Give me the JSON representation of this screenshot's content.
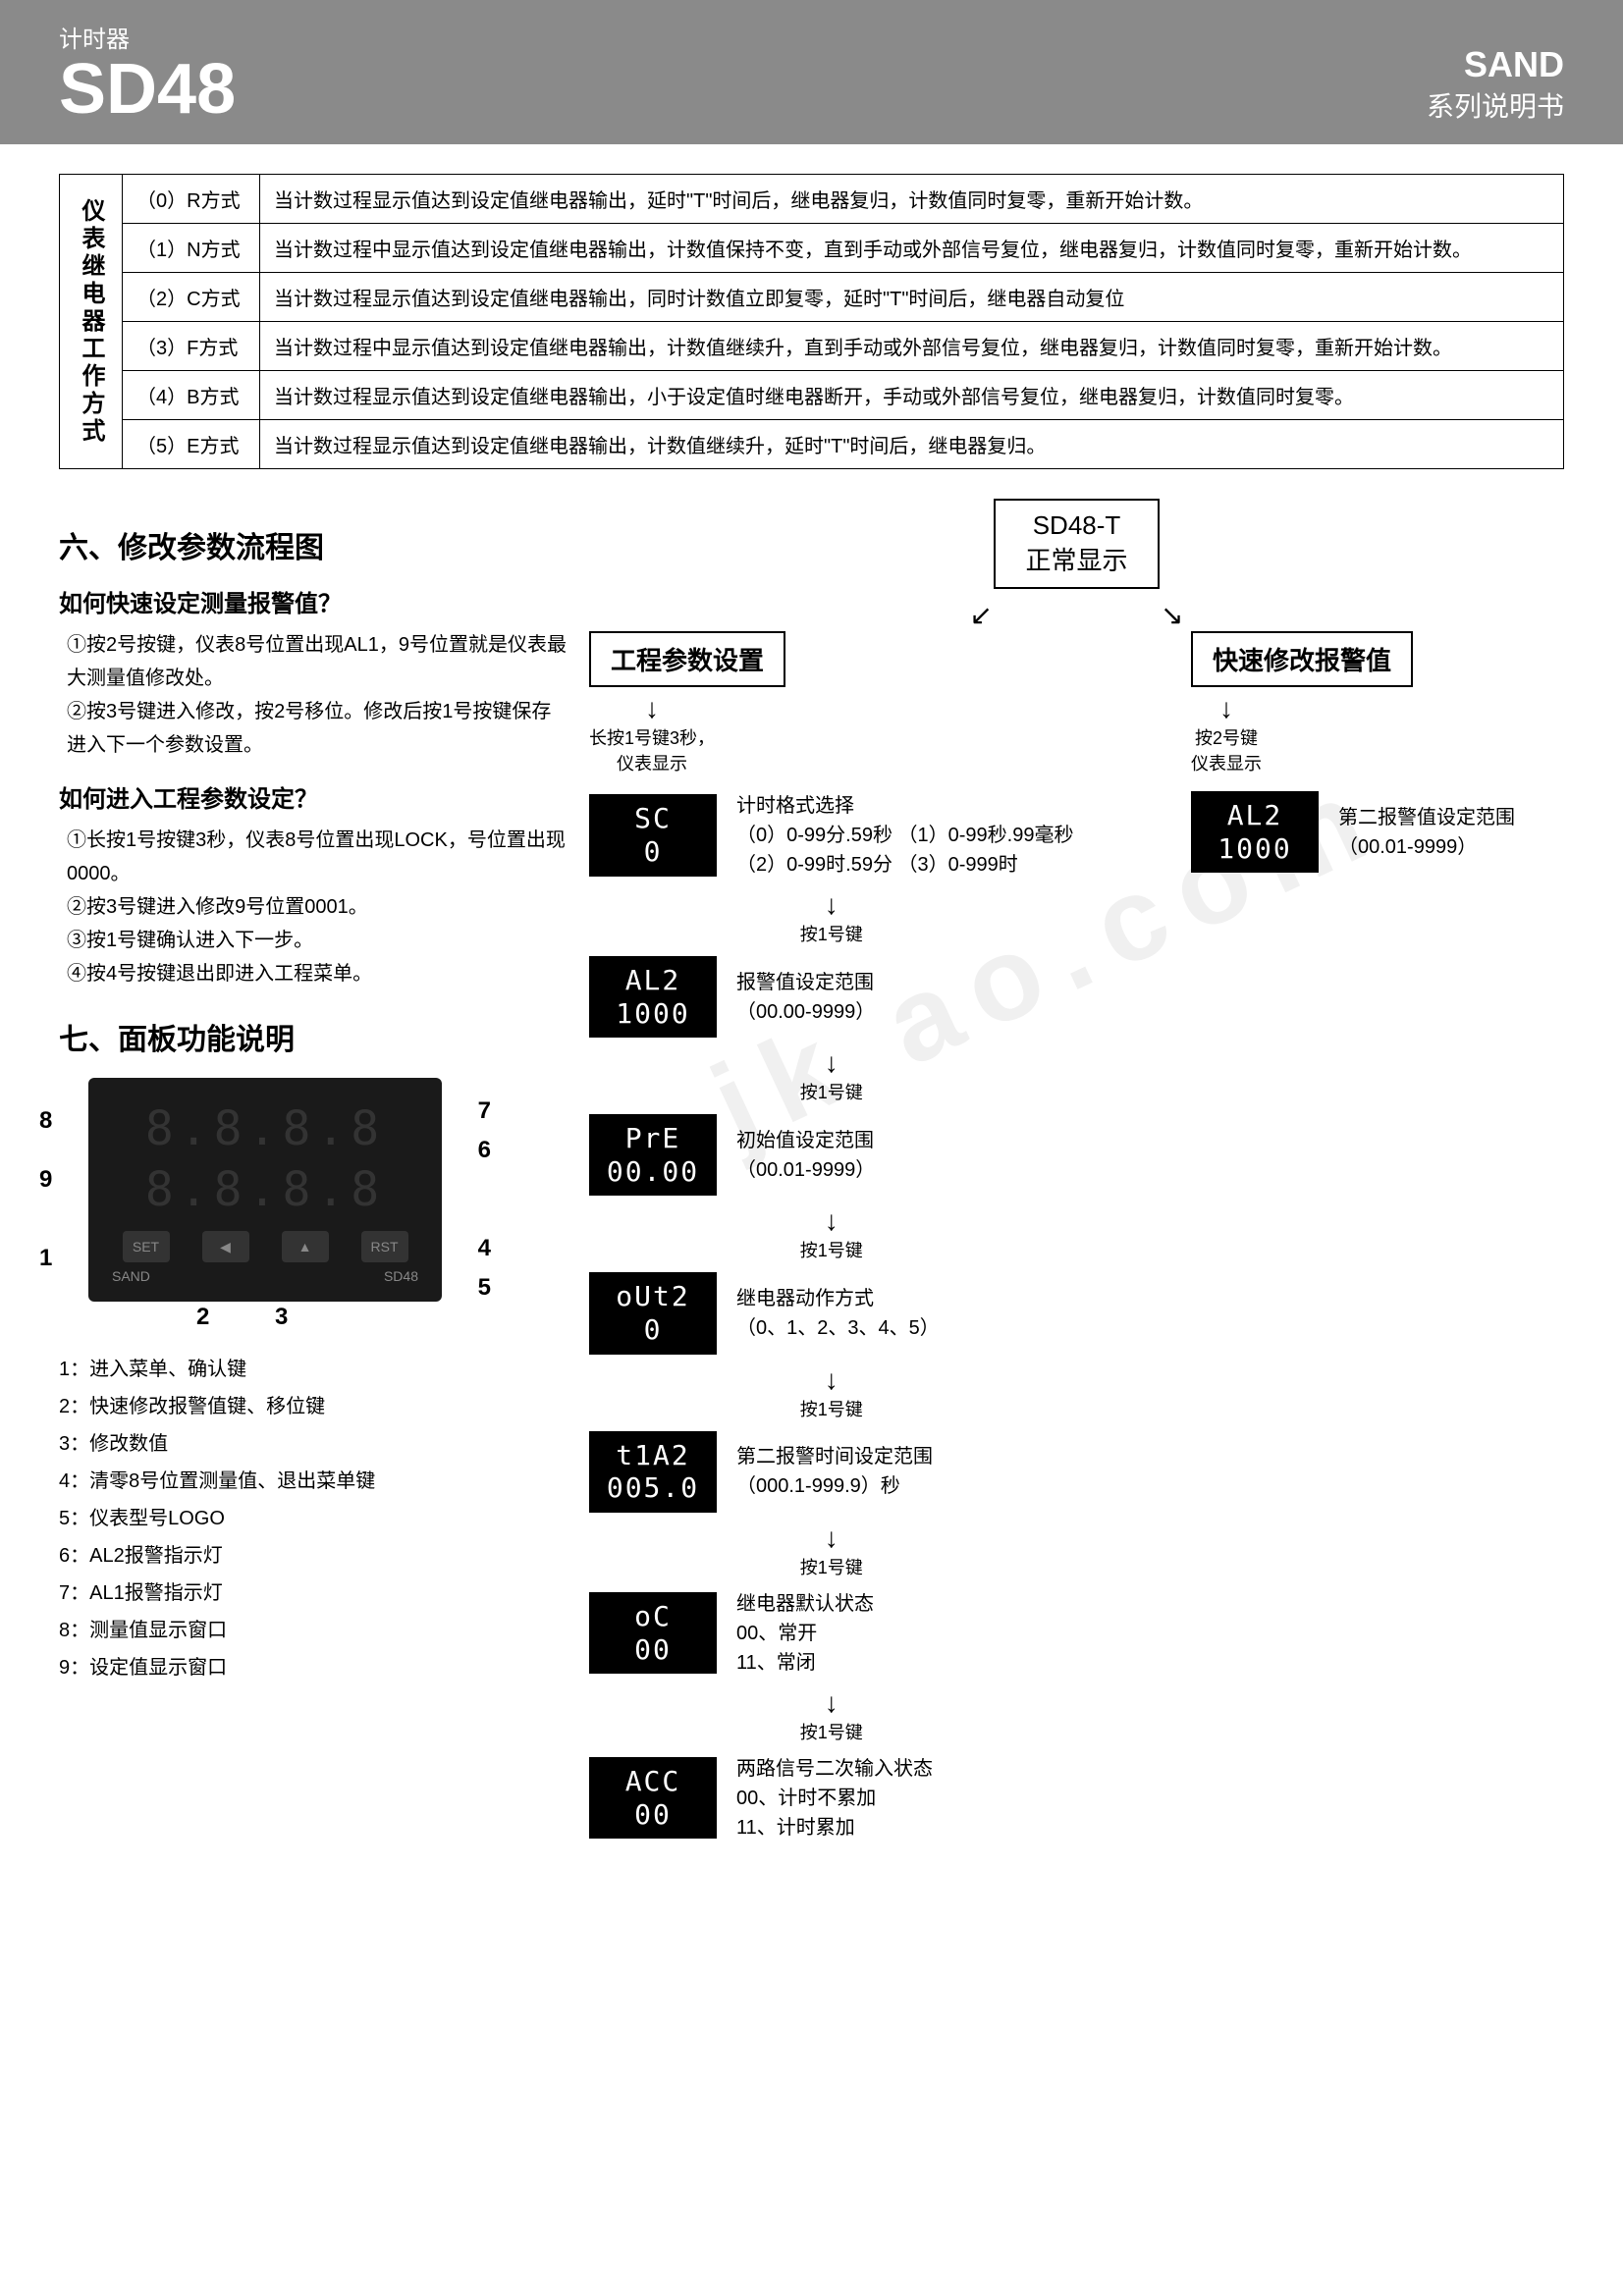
{
  "header": {
    "category": "计时器",
    "model": "SD48",
    "brand": "SAND",
    "subtitle": "系列说明书"
  },
  "modeTable": {
    "vheader": "仪表继电器工作方式",
    "rows": [
      {
        "mode": "（0）R方式",
        "desc": "当计数过程显示值达到设定值继电器输出，延时\"T\"时间后，继电器复归，计数值同时复零，重新开始计数。"
      },
      {
        "mode": "（1）N方式",
        "desc": "当计数过程中显示值达到设定值继电器输出，计数值保持不变，直到手动或外部信号复位，继电器复归，计数值同时复零，重新开始计数。"
      },
      {
        "mode": "（2）C方式",
        "desc": "当计数过程显示值达到设定值继电器输出，同时计数值立即复零，延时\"T\"时间后，继电器自动复位"
      },
      {
        "mode": "（3）F方式",
        "desc": "当计数过程中显示值达到设定值继电器输出，计数值继续升，直到手动或外部信号复位，继电器复归，计数值同时复零，重新开始计数。"
      },
      {
        "mode": "（4）B方式",
        "desc": "当计数过程显示值达到设定值继电器输出，小于设定值时继电器断开，手动或外部信号复位，继电器复归，计数值同时复零。"
      },
      {
        "mode": "（5）E方式",
        "desc": "当计数过程显示值达到设定值继电器输出，计数值继续升，延时\"T\"时间后，继电器复归。"
      }
    ]
  },
  "section6": {
    "title": "六、修改参数流程图",
    "q1": "如何快速设定测量报警值？",
    "q1steps": "①按2号按键，仪表8号位置出现AL1，9号位置就是仪表最大测量值修改处。\n②按3号键进入修改，按2号移位。修改后按1号按键保存进入下一个参数设置。",
    "q2": "如何进入工程参数设定？",
    "q2steps": "①长按1号按键3秒，仪表8号位置出现LOCK，号位置出现0000。\n②按3号键进入修改9号位置0001。\n③按1号键确认进入下一步。\n④按4号按键退出即进入工程菜单。"
  },
  "section7": {
    "title": "七、面板功能说明",
    "panel": {
      "seg1": "8.8.8.8",
      "seg2": "8.8.8.8",
      "btn1": "SET",
      "btn2": "◀",
      "btn3": "▲",
      "btn4": "RST",
      "logo": "SAND",
      "model": "SD48"
    },
    "callouts": {
      "c1": "1",
      "c2": "2",
      "c3": "3",
      "c4": "4",
      "c5": "5",
      "c6": "6",
      "c7": "7",
      "c8": "8",
      "c9": "9"
    },
    "legend": [
      "1：进入菜单、确认键",
      "2：快速修改报警值键、移位键",
      "3：修改数值",
      "4：清零8号位置测量值、退出菜单键",
      "5：仪表型号LOGO",
      "6：AL2报警指示灯",
      "7：AL1报警指示灯",
      "8：测量值显示窗口",
      "9：设定值显示窗口"
    ]
  },
  "flow": {
    "start": "SD48-T\n正常显示",
    "branch1": "工程参数设置",
    "branch2": "快速修改报警值",
    "note1": "长按1号键3秒，\n仪表显示",
    "note2": "按2号键\n仪表显示",
    "quick": {
      "disp": "AL2\n1000",
      "desc": "第二报警值设定范围\n（00.01-9999）"
    },
    "steps": [
      {
        "disp": "SC\n0",
        "desc": "计时格式选择\n（0）0-99分.59秒  （1）0-99秒.99毫秒\n（2）0-99时.59分  （3）0-999时",
        "arrow": "按1号键"
      },
      {
        "disp": "AL2\n1000",
        "desc": "报警值设定范围\n（00.00-9999）",
        "arrow": "按1号键"
      },
      {
        "disp": "PrE\n00.00",
        "desc": "初始值设定范围\n（00.01-9999）",
        "arrow": "按1号键"
      },
      {
        "disp": "oUt2\n0",
        "desc": "继电器动作方式\n（0、1、2、3、4、5）",
        "arrow": "按1号键"
      },
      {
        "disp": "t1A2\n005.0",
        "desc": "第二报警时间设定范围\n（000.1-999.9）秒",
        "arrow": "按1号键"
      },
      {
        "disp": "oC\n00",
        "desc": "继电器默认状态\n00、常开\n11、常闭",
        "arrow": "按1号键"
      },
      {
        "disp": "ACC\n00",
        "desc": "两路信号二次输入状态\n00、计时不累加\n11、计时累加",
        "arrow": ""
      }
    ]
  }
}
